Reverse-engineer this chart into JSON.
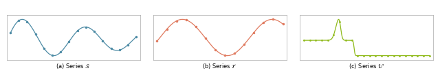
{
  "color_a": "#4d8ba5",
  "color_b": "#e07a5f",
  "color_c": "#8fba1a",
  "fig_width": 6.4,
  "fig_height": 1.1,
  "dpi": 100,
  "label_a": "(a) Series $\\mathcal{S}$",
  "label_b": "(b) Series $\\mathcal{T}$",
  "label_c": "(c) Series $\\mathcal{U}$"
}
